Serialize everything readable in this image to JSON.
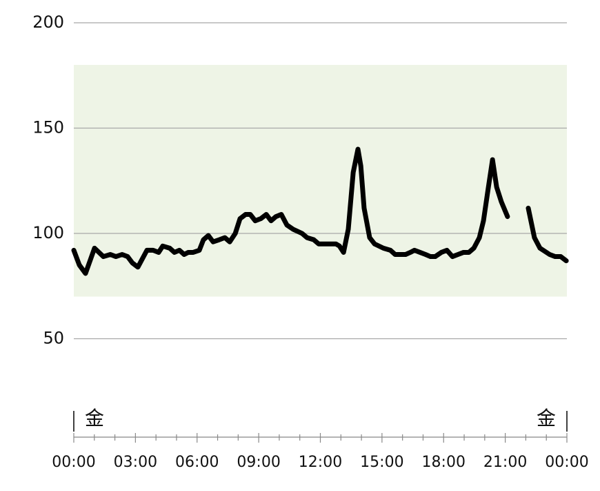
{
  "chart_data": {
    "type": "line",
    "x": [
      0,
      0.27,
      0.57,
      1.01,
      1.44,
      1.78,
      2.05,
      2.35,
      2.62,
      2.85,
      3.12,
      3.56,
      3.86,
      4.13,
      4.33,
      4.67,
      4.9,
      5.14,
      5.37,
      5.57,
      5.81,
      6.11,
      6.31,
      6.55,
      6.78,
      7.08,
      7.35,
      7.59,
      7.86,
      8.09,
      8.36,
      8.59,
      8.83,
      9.1,
      9.37,
      9.6,
      9.84,
      10.1,
      10.37,
      10.67,
      11.11,
      11.35,
      11.68,
      11.92,
      12.19,
      12.49,
      12.76,
      12.93,
      13.13,
      13.36,
      13.6,
      13.83,
      13.97,
      14.13,
      14.4,
      14.64,
      15.07,
      15.41,
      15.64,
      15.91,
      16.15,
      16.38,
      16.58,
      16.85,
      17.12,
      17.36,
      17.59,
      17.89,
      18.16,
      18.43,
      18.7,
      18.97,
      19.23,
      19.47,
      19.74,
      19.94,
      20.18,
      20.38,
      20.58,
      20.81,
      21.11,
      21.6,
      22.12,
      22.42,
      22.69,
      23.16,
      23.43,
      23.7,
      23.97
    ],
    "series": [
      {
        "color": "#000000",
        "values": [
          92,
          85,
          81,
          93,
          89,
          90,
          89,
          90,
          89,
          86,
          84,
          92,
          92,
          91,
          94,
          93,
          91,
          92,
          90,
          91,
          91,
          92,
          97,
          99,
          96,
          97,
          98,
          96,
          100,
          107,
          109,
          109,
          106,
          107,
          109,
          106,
          108,
          109,
          104,
          102,
          100,
          98,
          97,
          95,
          95,
          95,
          95,
          94,
          91,
          102,
          129,
          140,
          132,
          112,
          98,
          95,
          93,
          92,
          90,
          90,
          90,
          91,
          92,
          91,
          90,
          89,
          89,
          91,
          92,
          89,
          90,
          91,
          91,
          93,
          98,
          106,
          122,
          135,
          122,
          115,
          108,
          null,
          112,
          98,
          93,
          90,
          89,
          89,
          87
        ]
      }
    ],
    "xlim": [
      0,
      24
    ],
    "xticks": [
      {
        "value": 0,
        "label": "00:00"
      },
      {
        "value": 3,
        "label": "03:00"
      },
      {
        "value": 6,
        "label": "06:00"
      },
      {
        "value": 9,
        "label": "09:00"
      },
      {
        "value": 12,
        "label": "12:00"
      },
      {
        "value": 15,
        "label": "15:00"
      },
      {
        "value": 18,
        "label": "18:00"
      },
      {
        "value": 21,
        "label": "21:00"
      },
      {
        "value": 24,
        "label": "00:00"
      }
    ],
    "ylim": [
      35,
      200
    ],
    "yticks": [
      50,
      100,
      150,
      200
    ],
    "target_range": [
      70,
      180
    ],
    "target_color": "#eef4e6",
    "grid": true,
    "day_labels": [
      "金",
      "金"
    ]
  }
}
